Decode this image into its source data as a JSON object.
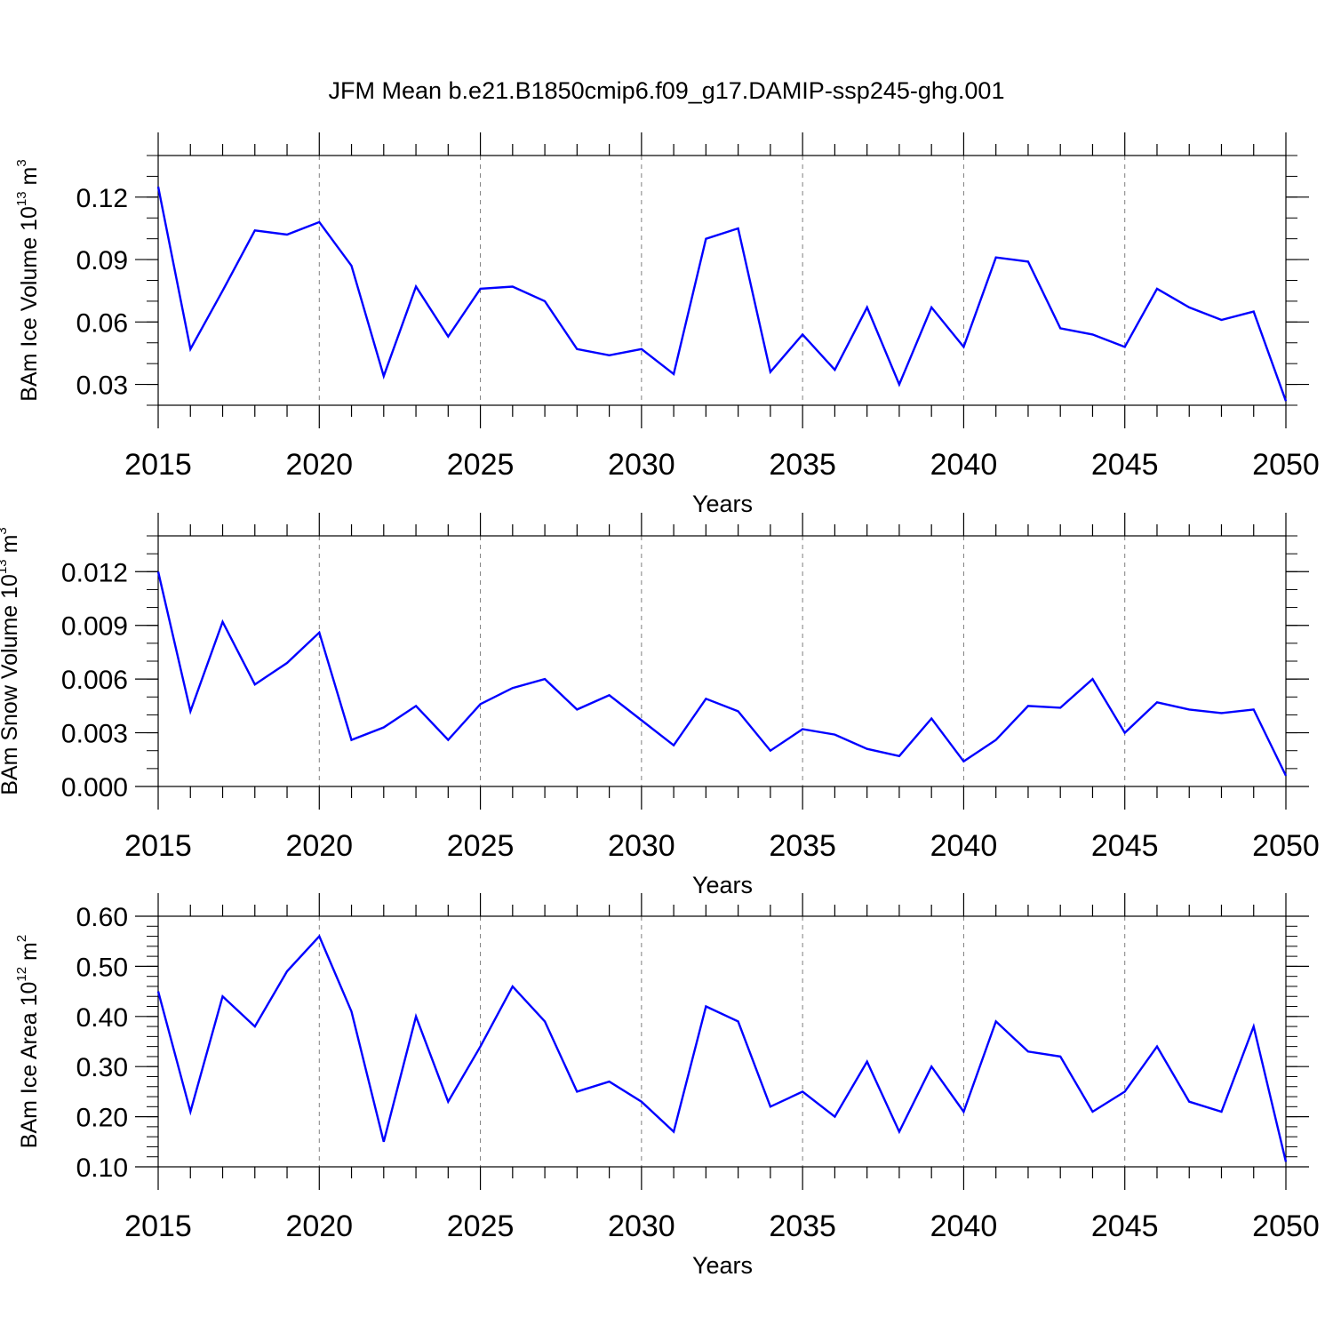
{
  "figure": {
    "title": "JFM Mean b.e21.B1850cmip6.f09_g17.DAMIP-ssp245-ghg.001",
    "line_color": "#0000ff",
    "frame_color": "#000000",
    "grid_color": "#7f7f7f"
  },
  "chart_data": [
    {
      "type": "line",
      "xlabel": "Years",
      "ylabel": {
        "text": "BAm Ice Volume 10",
        "exponent": "13",
        "unit": " m",
        "unit_exponent": "3"
      },
      "xlim": [
        2015,
        2050
      ],
      "ylim": [
        0.02,
        0.14
      ],
      "xticks": [
        2015,
        2020,
        2025,
        2030,
        2035,
        2040,
        2045,
        2050
      ],
      "yticks": [
        "0.03",
        "0.06",
        "0.09",
        "0.12"
      ],
      "ytick_values": [
        0.03,
        0.06,
        0.09,
        0.12
      ],
      "yminor": 0.01,
      "grid": "vertical dashed at major x ticks",
      "series": [
        {
          "x": [
            2015,
            2016,
            2017,
            2018,
            2019,
            2020,
            2021,
            2022,
            2023,
            2024,
            2025,
            2026,
            2027,
            2028,
            2029,
            2030,
            2031,
            2032,
            2033,
            2034,
            2035,
            2036,
            2037,
            2038,
            2039,
            2040,
            2041,
            2042,
            2043,
            2044,
            2045,
            2046,
            2047,
            2048,
            2049,
            2050
          ],
          "values": [
            0.125,
            0.047,
            0.075,
            0.104,
            0.102,
            0.108,
            0.087,
            0.034,
            0.077,
            0.053,
            0.076,
            0.077,
            0.07,
            0.047,
            0.044,
            0.047,
            0.035,
            0.1,
            0.105,
            0.036,
            0.054,
            0.037,
            0.067,
            0.03,
            0.067,
            0.048,
            0.091,
            0.089,
            0.057,
            0.054,
            0.048,
            0.076,
            0.067,
            0.061,
            0.065,
            0.022
          ]
        }
      ]
    },
    {
      "type": "line",
      "xlabel": "Years",
      "ylabel": {
        "text": "BAm Snow Volume 10",
        "exponent": "13",
        "unit": " m",
        "unit_exponent": "3"
      },
      "xlim": [
        2015,
        2050
      ],
      "ylim": [
        0.0,
        0.014
      ],
      "xticks": [
        2015,
        2020,
        2025,
        2030,
        2035,
        2040,
        2045,
        2050
      ],
      "yticks": [
        "0.000",
        "0.003",
        "0.006",
        "0.009",
        "0.012"
      ],
      "ytick_values": [
        0.0,
        0.003,
        0.006,
        0.009,
        0.012
      ],
      "yminor": 0.001,
      "grid": "vertical dashed at major x ticks",
      "series": [
        {
          "x": [
            2015,
            2016,
            2017,
            2018,
            2019,
            2020,
            2021,
            2022,
            2023,
            2024,
            2025,
            2026,
            2027,
            2028,
            2029,
            2030,
            2031,
            2032,
            2033,
            2034,
            2035,
            2036,
            2037,
            2038,
            2039,
            2040,
            2041,
            2042,
            2043,
            2044,
            2045,
            2046,
            2047,
            2048,
            2049,
            2050
          ],
          "values": [
            0.012,
            0.0042,
            0.0092,
            0.0057,
            0.0069,
            0.0086,
            0.0026,
            0.0033,
            0.0045,
            0.0026,
            0.0046,
            0.0055,
            0.006,
            0.0043,
            0.0051,
            0.0037,
            0.0023,
            0.0049,
            0.0042,
            0.002,
            0.0032,
            0.0029,
            0.0021,
            0.0017,
            0.0038,
            0.0014,
            0.0026,
            0.0045,
            0.0044,
            0.006,
            0.003,
            0.0047,
            0.0043,
            0.0041,
            0.0043,
            0.0006
          ]
        }
      ]
    },
    {
      "type": "line",
      "xlabel": "Years",
      "ylabel": {
        "text": "BAm Ice Area 10",
        "exponent": "12",
        "unit": " m",
        "unit_exponent": "2"
      },
      "xlim": [
        2015,
        2050
      ],
      "ylim": [
        0.1,
        0.6
      ],
      "xticks": [
        2015,
        2020,
        2025,
        2030,
        2035,
        2040,
        2045,
        2050
      ],
      "yticks": [
        "0.10",
        "0.20",
        "0.30",
        "0.40",
        "0.50",
        "0.60"
      ],
      "ytick_values": [
        0.1,
        0.2,
        0.3,
        0.4,
        0.5,
        0.6
      ],
      "yminor": 0.02,
      "grid": "vertical dashed at major x ticks",
      "series": [
        {
          "x": [
            2015,
            2016,
            2017,
            2018,
            2019,
            2020,
            2021,
            2022,
            2023,
            2024,
            2025,
            2026,
            2027,
            2028,
            2029,
            2030,
            2031,
            2032,
            2033,
            2034,
            2035,
            2036,
            2037,
            2038,
            2039,
            2040,
            2041,
            2042,
            2043,
            2044,
            2045,
            2046,
            2047,
            2048,
            2049,
            2050
          ],
          "values": [
            0.45,
            0.21,
            0.44,
            0.38,
            0.49,
            0.56,
            0.41,
            0.15,
            0.4,
            0.23,
            0.34,
            0.46,
            0.39,
            0.25,
            0.27,
            0.23,
            0.17,
            0.42,
            0.39,
            0.22,
            0.25,
            0.2,
            0.31,
            0.17,
            0.3,
            0.21,
            0.39,
            0.33,
            0.32,
            0.21,
            0.25,
            0.34,
            0.23,
            0.21,
            0.38,
            0.11
          ]
        }
      ]
    }
  ]
}
